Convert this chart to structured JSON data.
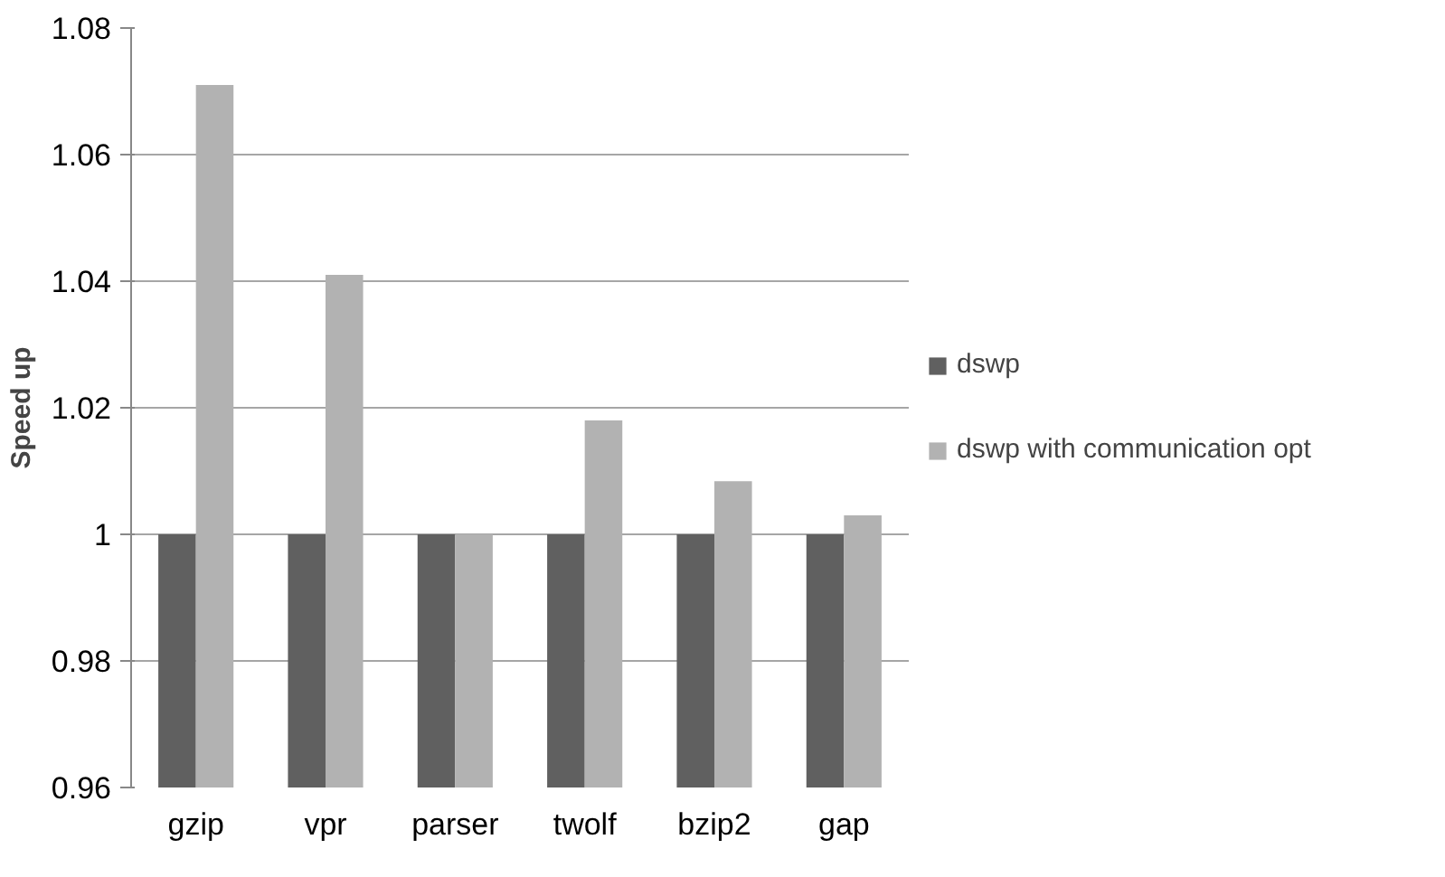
{
  "chart_data": {
    "type": "bar",
    "ylabel": "Speed up",
    "categories": [
      "gzip",
      "vpr",
      "parser",
      "twolf",
      "bzip2",
      "gap"
    ],
    "series": [
      {
        "name": "dswp",
        "color": "#606060",
        "values": [
          1,
          1,
          1,
          1,
          1,
          1
        ]
      },
      {
        "name": "dswp with communication opt",
        "color": "#b2b2b2",
        "values": [
          1.071,
          1.041,
          1,
          1.018,
          1.0084,
          1.003
        ]
      }
    ],
    "ylim": [
      0.96,
      1.08
    ],
    "yticks": [
      0.96,
      0.98,
      1,
      1.02,
      1.04,
      1.06,
      1.08
    ],
    "grid": "y",
    "legend": "right"
  }
}
